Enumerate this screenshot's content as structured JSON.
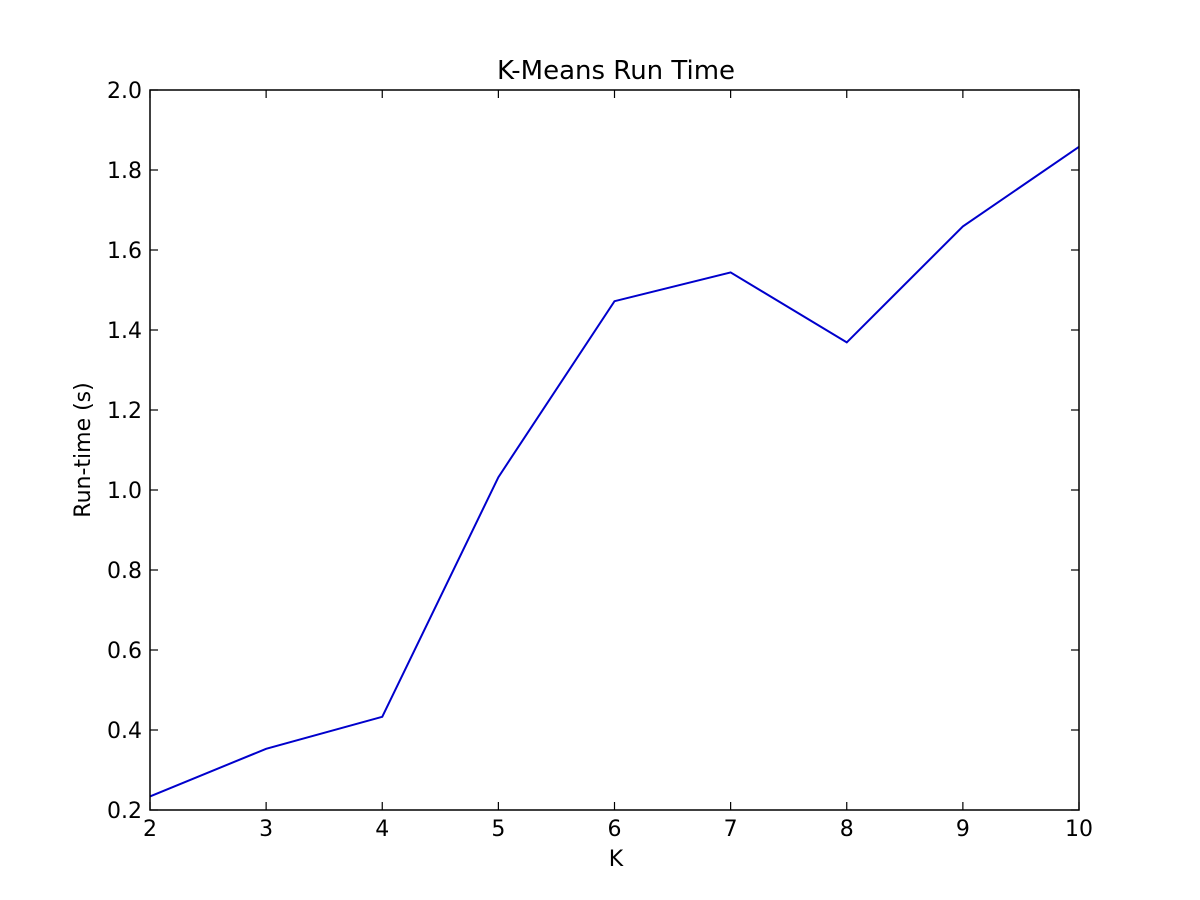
{
  "chart_data": {
    "type": "line",
    "title": "K-Means Run Time",
    "xlabel": "K",
    "ylabel": "Run-time (s)",
    "x": [
      2,
      3,
      4,
      5,
      6,
      7,
      8,
      9,
      10
    ],
    "series": [
      {
        "values": [
          0.234,
          0.353,
          0.433,
          1.032,
          1.472,
          1.544,
          1.369,
          1.659,
          1.858
        ],
        "color": "#0000cc"
      }
    ],
    "xlim": [
      2,
      10
    ],
    "ylim": [
      0.2,
      2.0
    ],
    "xticks": [
      2,
      3,
      4,
      5,
      6,
      7,
      8,
      9,
      10
    ],
    "yticks": [
      0.2,
      0.4,
      0.6,
      0.8,
      1.0,
      1.2,
      1.4,
      1.6,
      1.8,
      2.0
    ],
    "x_tick_labels": [
      "2",
      "3",
      "4",
      "5",
      "6",
      "7",
      "8",
      "9",
      "10"
    ],
    "y_tick_labels": [
      "0.2",
      "0.4",
      "0.6",
      "0.8",
      "1.0",
      "1.2",
      "1.4",
      "1.6",
      "1.8",
      "2.0"
    ],
    "grid": false,
    "legend": "none"
  }
}
